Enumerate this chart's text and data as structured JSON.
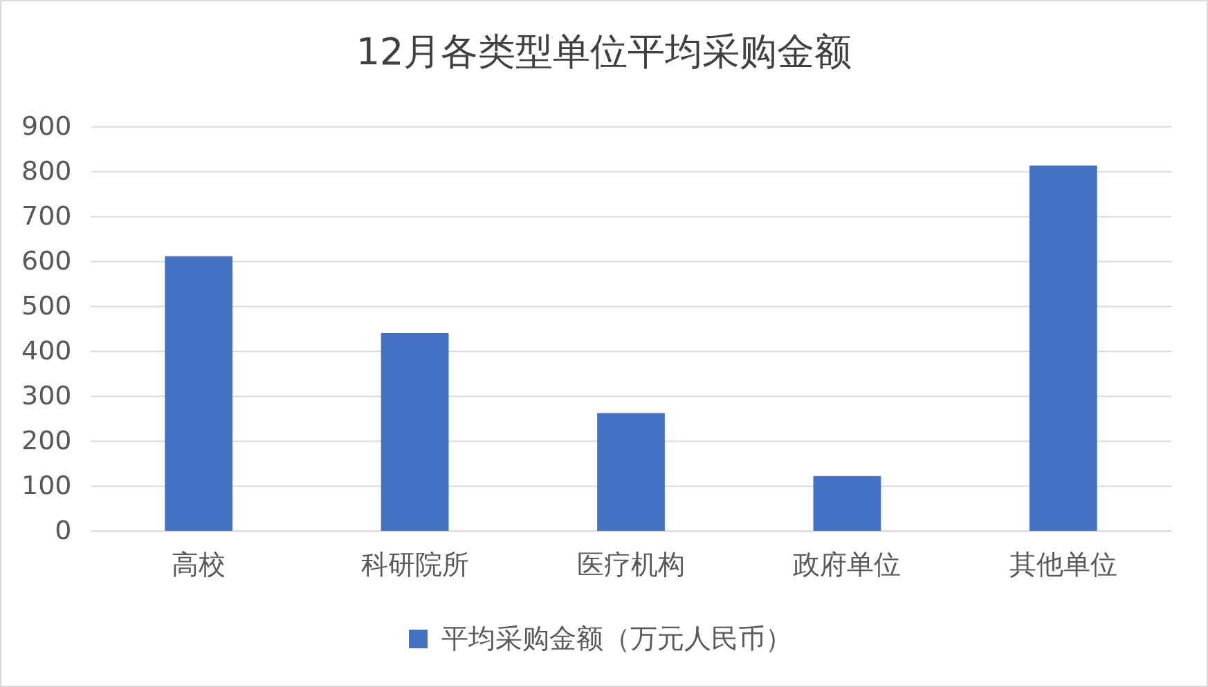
{
  "chart_data": {
    "type": "bar",
    "title": "12月各类型单位平均采购金额",
    "categories": [
      "高校",
      "科研院所",
      "医疗机构",
      "政府单位",
      "其他单位"
    ],
    "series": [
      {
        "name": "平均采购金额（万元人民币）",
        "color": "#4472c4",
        "values": [
          611,
          440,
          262,
          122,
          813
        ]
      }
    ],
    "ylim": [
      0,
      900
    ],
    "yticks": [
      0,
      100,
      200,
      300,
      400,
      500,
      600,
      700,
      800,
      900
    ],
    "grid": "y",
    "legend": "bottom"
  }
}
